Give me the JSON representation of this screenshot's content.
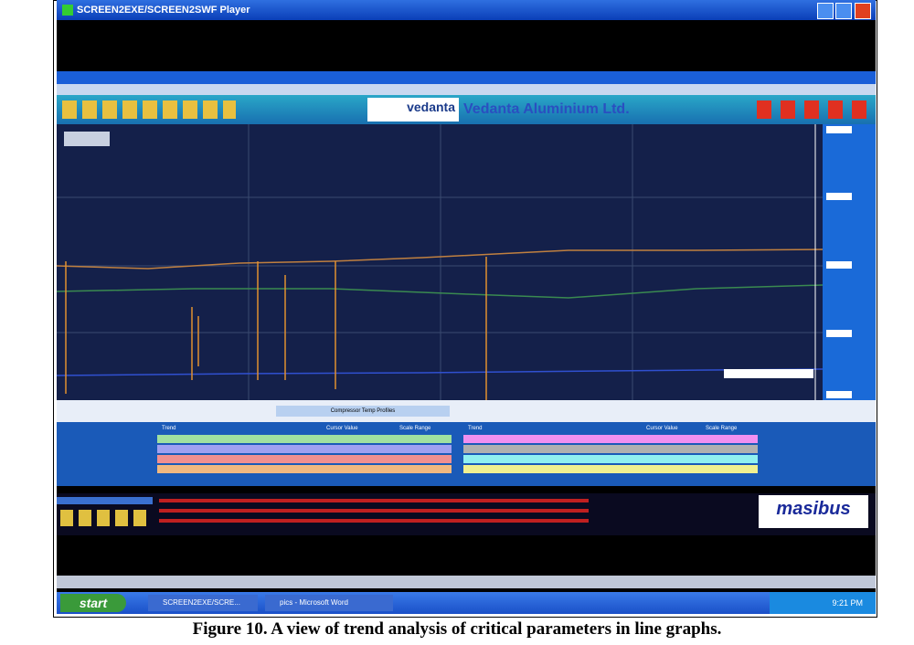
{
  "window_title": "SCREEN2EXE/SCREEN2SWF Player",
  "app": {
    "logo": "vedanta",
    "company": "Vedanta Aluminium Ltd.",
    "chart_title": "Compressor Temp Profiles",
    "table_headers": [
      "Trend",
      "Cursor Value",
      "Scale Range"
    ],
    "brand": "masibus"
  },
  "taskbar": {
    "start": "start",
    "tasks": [
      "SCREEN2EXE/SCRE...",
      "pics - Microsoft Word"
    ],
    "clock": "9:21 PM"
  },
  "caption": "Figure 10. A view of trend analysis of critical parameters in line graphs."
}
